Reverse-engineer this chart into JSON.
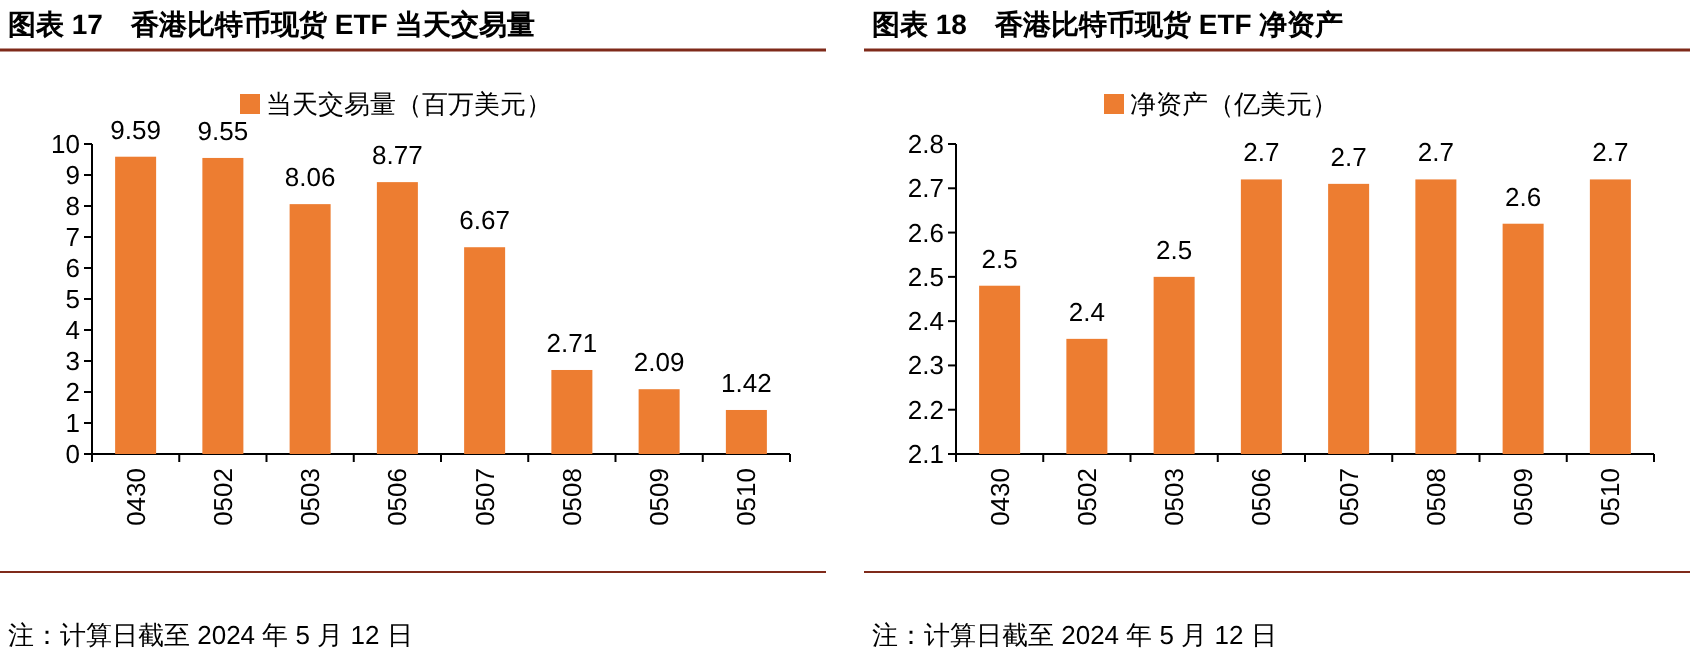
{
  "chart_data": [
    {
      "type": "bar",
      "title": "图表 17　香港比特币现货 ETF 当天交易量",
      "categories": [
        "0430",
        "0502",
        "0503",
        "0506",
        "0507",
        "0508",
        "0509",
        "0510"
      ],
      "series": [
        {
          "name": "当天交易量（百万美元）",
          "color": "#ed7d31",
          "values": [
            9.59,
            9.55,
            8.06,
            8.77,
            6.67,
            2.71,
            2.09,
            1.42
          ]
        }
      ],
      "ylim": [
        0,
        10
      ],
      "yticks": [
        0,
        1,
        2,
        3,
        4,
        5,
        6,
        7,
        8,
        9,
        10
      ],
      "legend": "top",
      "data_labels": true,
      "annotations": [
        "注：计算日截至 2024 年 5 月 12 日"
      ]
    },
    {
      "type": "bar",
      "title": "图表 18　香港比特币现货 ETF 净资产",
      "categories": [
        "0430",
        "0502",
        "0503",
        "0506",
        "0507",
        "0508",
        "0509",
        "0510"
      ],
      "series": [
        {
          "name": "净资产（亿美元）",
          "color": "#ed7d31",
          "values": [
            2.48,
            2.36,
            2.5,
            2.72,
            2.71,
            2.72,
            2.62,
            2.72
          ],
          "value_labels": [
            "2.5",
            "2.4",
            "2.5",
            "2.7",
            "2.7",
            "2.7",
            "2.6",
            "2.7"
          ]
        }
      ],
      "ylim": [
        2.1,
        2.8
      ],
      "yticks": [
        2.1,
        2.2,
        2.3,
        2.4,
        2.5,
        2.6,
        2.7,
        2.8
      ],
      "legend": "top",
      "annotations": [
        "注：计算日截至 2024 年 5 月 12 日"
      ]
    }
  ]
}
